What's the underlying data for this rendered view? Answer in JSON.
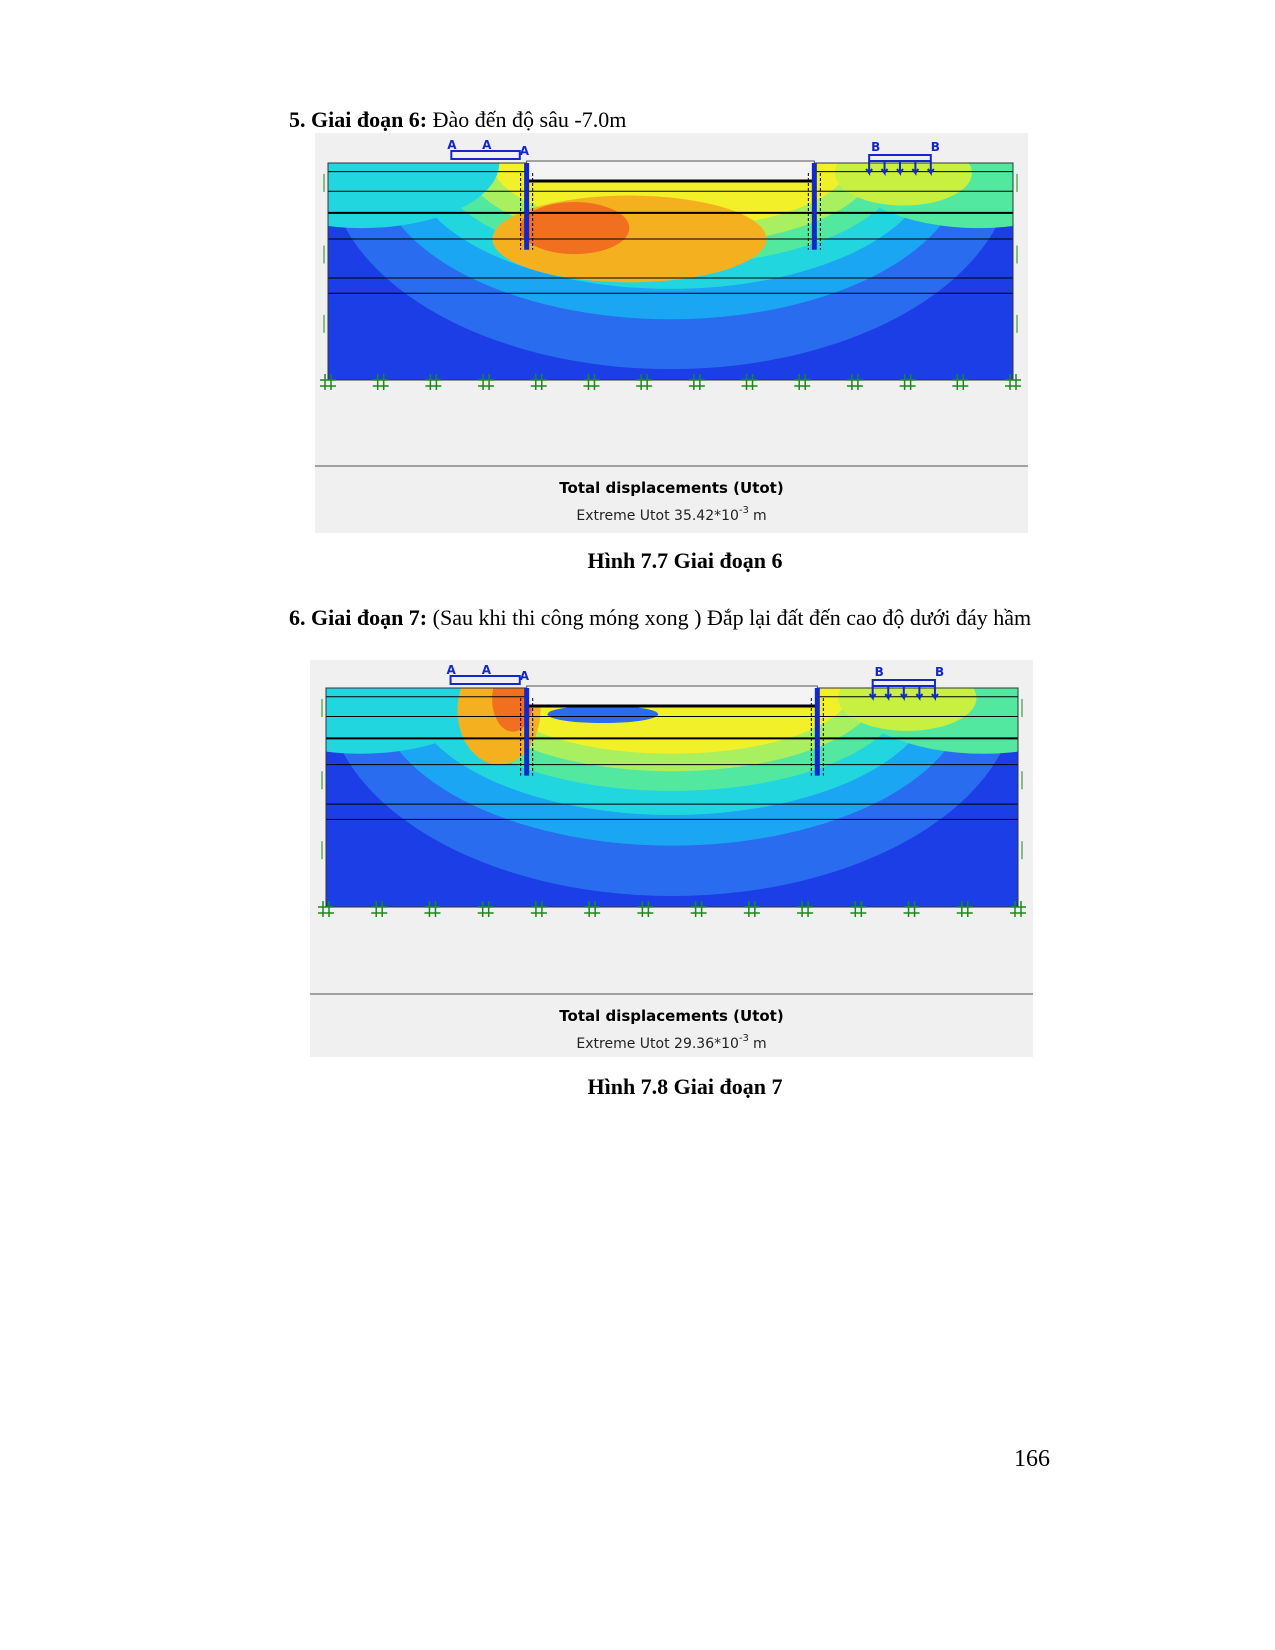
{
  "sections": [
    {
      "number": "5.",
      "heading": "Giai đoạn 6:",
      "text": "Đào đến độ sâu -7.0m",
      "figure": {
        "load_labels": [
          "A",
          "A",
          "A",
          "B",
          "B"
        ],
        "legend_title": "Total displacements (Utot)",
        "extreme_label": "Extreme Utot 35.42*10",
        "exponent": "-3",
        "unit": "m",
        "caption": "Hình 7.7 Giai đoạn 6"
      }
    },
    {
      "number": "6.",
      "heading": "Giai đoạn 7:",
      "text": "(Sau khi thi công móng xong ) Đắp lại đất đến cao độ dưới đáy hầm",
      "figure": {
        "load_labels": [
          "A",
          "A",
          "A",
          "B",
          "B"
        ],
        "legend_title": "Total displacements (Utot)",
        "extreme_label": "Extreme Utot 29.36*10",
        "exponent": "-3",
        "unit": "m",
        "caption": "Hình 7.8 Giai đoạn 7"
      }
    }
  ],
  "page_number": "166"
}
